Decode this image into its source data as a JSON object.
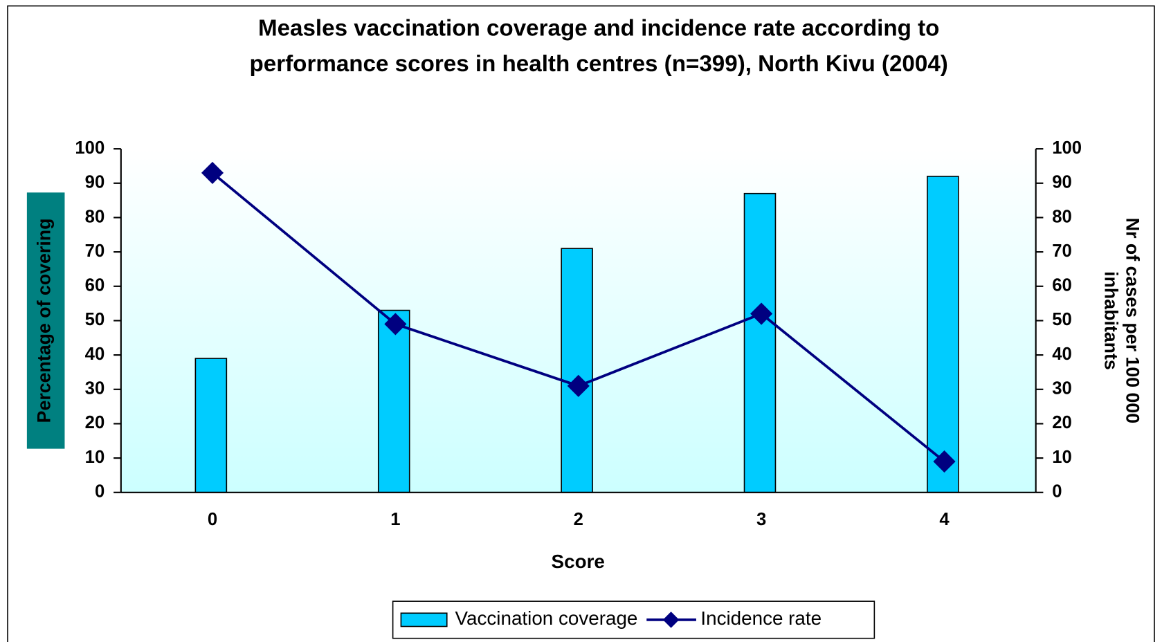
{
  "chart_data": {
    "type": "bar-line",
    "title": [
      "Measles vaccination coverage and  incidence rate according to",
      "performance scores in health centres (n=399), North Kivu (2004)"
    ],
    "xlabel": "Score",
    "ylabel": "Percentage of covering",
    "y2label": [
      "Nr of cases per 100 000",
      "inhabitants"
    ],
    "categories": [
      "0",
      "1",
      "2",
      "3",
      "4"
    ],
    "series": [
      {
        "name": "Vaccination coverage",
        "type": "bar",
        "color": "#00ccff",
        "values": [
          39,
          53,
          71,
          87,
          92
        ]
      },
      {
        "name": "Incidence  rate",
        "type": "line",
        "axis": "y2",
        "color": "#000080",
        "values": [
          93,
          49,
          31,
          52,
          9
        ]
      }
    ],
    "ylim": [
      0,
      100
    ],
    "yticks": [
      0,
      10,
      20,
      30,
      40,
      50,
      60,
      70,
      80,
      90,
      100
    ],
    "y2lim": [
      0,
      100
    ],
    "y2ticks": [
      0,
      10,
      20,
      30,
      40,
      50,
      60,
      70,
      80,
      90,
      100
    ],
    "legend": "bottom"
  }
}
